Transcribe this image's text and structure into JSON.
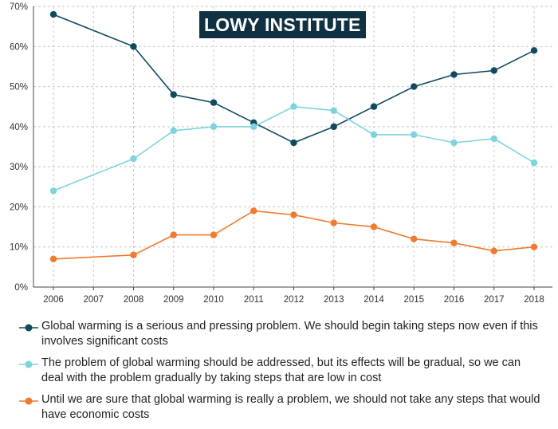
{
  "brand": {
    "text": "LOWY INSTITUTE"
  },
  "colors": {
    "dark": "#0f4a5e",
    "light": "#7ed3dc",
    "orange": "#f07a2e",
    "grid": "#c9c9c9",
    "axis": "#444444"
  },
  "chart_data": {
    "type": "line",
    "x": [
      "2006",
      "2007",
      "2008",
      "2009",
      "2010",
      "2011",
      "2012",
      "2013",
      "2014",
      "2015",
      "2016",
      "2017",
      "2018"
    ],
    "y_ticks": [
      "0%",
      "10%",
      "20%",
      "30%",
      "40%",
      "50%",
      "60%",
      "70%"
    ],
    "ylim": [
      0,
      70
    ],
    "series": [
      {
        "name": "Global warming is a serious and pressing problem. We should begin taking steps now even if this involves significant costs",
        "color": "#0f4a5e",
        "values": [
          68,
          null,
          60,
          48,
          46,
          41,
          36,
          40,
          45,
          50,
          53,
          54,
          59
        ]
      },
      {
        "name": "The problem of global warming should be addressed, but its effects will be gradual, so we can deal with the problem gradually by taking steps that are low in cost",
        "color": "#7ed3dc",
        "values": [
          24,
          null,
          32,
          39,
          40,
          40,
          45,
          44,
          38,
          38,
          36,
          37,
          31
        ]
      },
      {
        "name": "Until we are sure that global warming is really a problem, we should not take any steps that would have economic costs",
        "color": "#f07a2e",
        "values": [
          7,
          null,
          8,
          13,
          13,
          19,
          18,
          16,
          15,
          12,
          11,
          9,
          10
        ]
      }
    ]
  }
}
